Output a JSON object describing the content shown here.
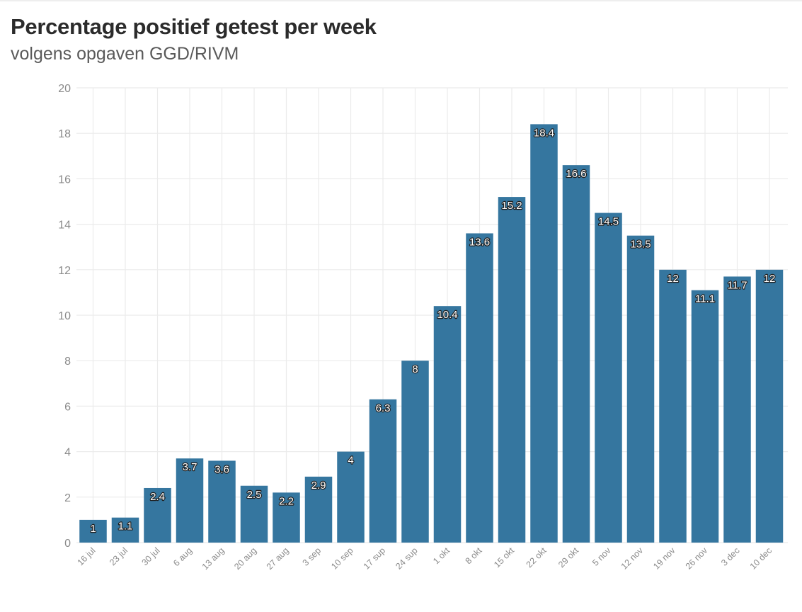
{
  "header": {
    "title": "Percentage positief getest per week",
    "subtitle": "volgens opgaven GGD/RIVM"
  },
  "colors": {
    "bar": "#35769f",
    "grid": "#ebebeb",
    "tick_text": "#8a8a8a"
  },
  "chart_data": {
    "type": "bar",
    "title": "Percentage positief getest per week",
    "subtitle": "volgens opgaven GGD/RIVM",
    "xlabel": "",
    "ylabel": "",
    "ylim": [
      0,
      20
    ],
    "yticks": [
      0,
      2,
      4,
      6,
      8,
      10,
      12,
      14,
      16,
      18,
      20
    ],
    "grid": true,
    "legend": "none",
    "categories": [
      "16 jul",
      "23 jul",
      "30 jul",
      "6 aug",
      "13 aug",
      "20 aug",
      "27 aug",
      "3 sep",
      "10 sep",
      "17 sup",
      "24 sup",
      "1 okt",
      "8 okt",
      "15 okt",
      "22 okt",
      "29 okt",
      "5 nov",
      "12 nov",
      "19 nov",
      "26 nov",
      "3 dec",
      "10 dec"
    ],
    "values": [
      1,
      1.1,
      2.4,
      3.7,
      3.6,
      2.5,
      2.2,
      2.9,
      4,
      6.3,
      8,
      10.4,
      13.6,
      15.2,
      18.4,
      16.6,
      14.5,
      13.5,
      12,
      11.1,
      11.7,
      12
    ],
    "data_labels": [
      "1",
      "1.1",
      "2.4",
      "3.7",
      "3.6",
      "2.5",
      "2.2",
      "2.9",
      "4",
      "6.3",
      "8",
      "10.4",
      "13.6",
      "15.2",
      "18.4",
      "16.6",
      "14.5",
      "13.5",
      "12",
      "11.1",
      "11.7",
      "12"
    ]
  }
}
